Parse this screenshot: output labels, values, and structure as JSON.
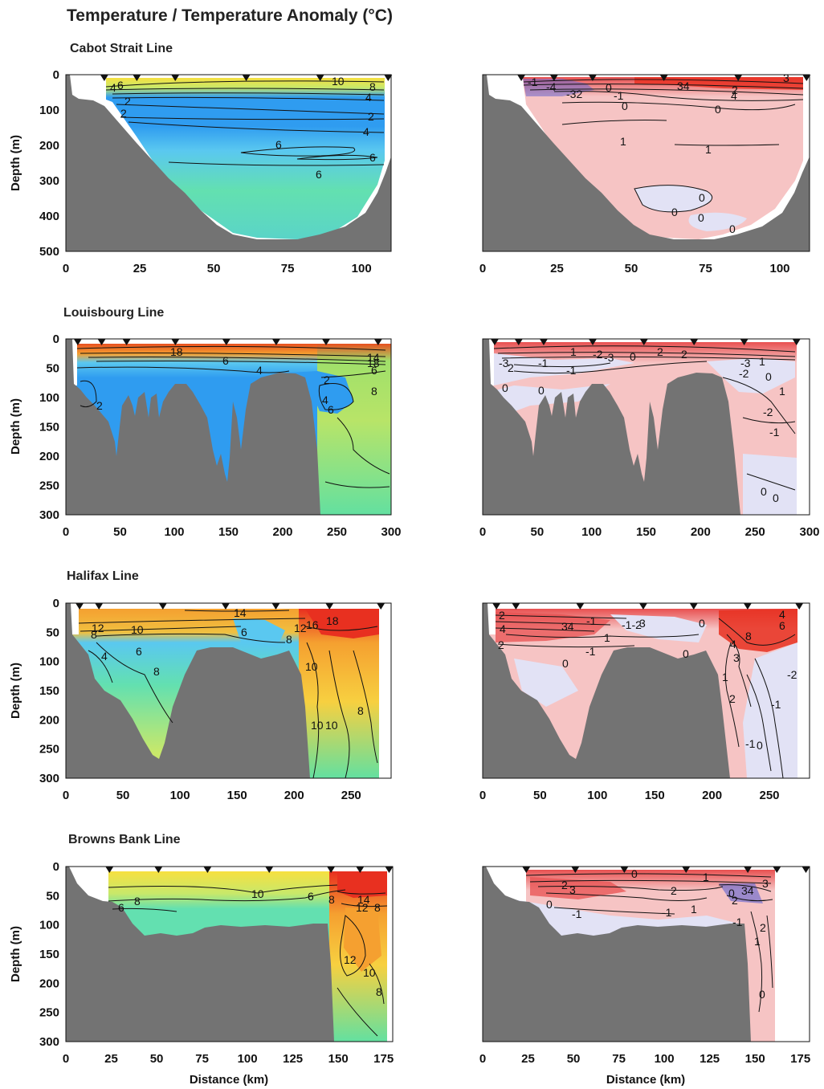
{
  "figure_title": "Temperature / Temperature Anomaly (°C)",
  "colors": {
    "bathymetry": "#737373",
    "cold": "#2f9cf0",
    "cool": "#5ac8f0",
    "mid": "#63e0b0",
    "warm_mid": "#c8e86a",
    "warm": "#f7e040",
    "hot": "#f5a030",
    "hottest": "#e83020",
    "anom_pos": "#f6c4c4",
    "anom_pos_strong": "#e85050",
    "anom_neg": "#e2e2f5",
    "anom_neg_strong": "#6a6ad0"
  },
  "chart_data": [
    {
      "type": "heatmap",
      "section": "Cabot Strait Line",
      "panel": "temperature",
      "ylabel": "Depth (m)",
      "xlim": [
        0,
        110
      ],
      "ylim": [
        500,
        0
      ],
      "xticks": [
        "0",
        "25",
        "50",
        "75",
        "100"
      ],
      "yticks": [
        "0",
        "100",
        "200",
        "300",
        "400",
        "500"
      ],
      "stations_km": [
        13,
        24,
        37,
        61,
        86,
        109
      ],
      "contour_labels": [
        "10",
        "8",
        "4",
        "6",
        "4",
        "2",
        "2",
        "2",
        "4",
        "6",
        "6",
        "6"
      ]
    },
    {
      "type": "heatmap",
      "section": "Cabot Strait Line",
      "panel": "anomaly",
      "xlim": [
        0,
        110
      ],
      "ylim": [
        500,
        0
      ],
      "xticks": [
        "0",
        "25",
        "50",
        "75",
        "100"
      ],
      "stations_km": [
        13,
        24,
        37,
        61,
        86,
        109
      ],
      "contour_labels": [
        "-1",
        "-4",
        "-32",
        "0",
        "-1",
        "0",
        "34",
        "2",
        "3",
        "4",
        "0",
        "1",
        "1",
        "0",
        "0",
        "0",
        "0"
      ]
    },
    {
      "type": "heatmap",
      "section": "Louisbourg Line",
      "panel": "temperature",
      "ylabel": "Depth (m)",
      "xlim": [
        0,
        300
      ],
      "ylim": [
        300,
        0
      ],
      "xticks": [
        "0",
        "50",
        "100",
        "150",
        "200",
        "250",
        "300"
      ],
      "yticks": [
        "0",
        "50",
        "100",
        "150",
        "200",
        "250",
        "300"
      ],
      "stations_km": [
        11,
        33,
        56,
        101,
        148,
        194,
        240,
        288
      ],
      "contour_labels": [
        "18",
        "6",
        "4",
        "2",
        "2",
        "4",
        "6",
        "8",
        "14",
        "18",
        "6"
      ]
    },
    {
      "type": "heatmap",
      "section": "Louisbourg Line",
      "panel": "anomaly",
      "xlim": [
        0,
        300
      ],
      "ylim": [
        300,
        0
      ],
      "xticks": [
        "0",
        "50",
        "100",
        "150",
        "200",
        "250",
        "300"
      ],
      "stations_km": [
        11,
        33,
        56,
        101,
        148,
        194,
        240,
        288
      ],
      "contour_labels": [
        "-3",
        "2",
        "-1",
        "1",
        "-2",
        "-3",
        "0",
        "2",
        "2",
        "-1",
        "0",
        "0",
        "-3",
        "-2",
        "1",
        "0",
        "1",
        "-2",
        "-1",
        "0",
        "0"
      ]
    },
    {
      "type": "heatmap",
      "section": "Halifax Line",
      "panel": "temperature",
      "ylabel": "Depth (m)",
      "xlim": [
        0,
        285
      ],
      "ylim": [
        300,
        0
      ],
      "xticks": [
        "0",
        "50",
        "100",
        "150",
        "200",
        "250"
      ],
      "yticks": [
        "0",
        "50",
        "100",
        "150",
        "200",
        "250",
        "300"
      ],
      "stations_km": [
        12,
        29,
        85,
        140,
        184,
        231,
        276
      ],
      "contour_labels": [
        "12",
        "10",
        "8",
        "6",
        "4",
        "8",
        "14",
        "6",
        "8",
        "12",
        "16",
        "18",
        "10",
        "10",
        "10",
        "8"
      ]
    },
    {
      "type": "heatmap",
      "section": "Halifax Line",
      "panel": "anomaly",
      "xlim": [
        0,
        285
      ],
      "ylim": [
        300,
        0
      ],
      "xticks": [
        "0",
        "50",
        "100",
        "150",
        "200",
        "250"
      ],
      "stations_km": [
        12,
        29,
        85,
        140,
        184,
        231,
        276
      ],
      "contour_labels": [
        "2",
        "4",
        "2",
        "34",
        "-1",
        "1",
        "-1",
        "0",
        "-1-2",
        "3",
        "0",
        "0",
        "4",
        "8",
        "4",
        "6",
        "3",
        "1",
        "2",
        "-1",
        "-2",
        "-1",
        "0"
      ]
    },
    {
      "type": "heatmap",
      "section": "Browns Bank Line",
      "panel": "temperature",
      "xlabel": "Distance (km)",
      "ylabel": "Depth (m)",
      "xlim": [
        0,
        180
      ],
      "ylim": [
        300,
        0
      ],
      "xticks": [
        "0",
        "25",
        "50",
        "75",
        "100",
        "125",
        "150",
        "175"
      ],
      "yticks": [
        "0",
        "50",
        "100",
        "150",
        "200",
        "250",
        "300"
      ],
      "stations_km": [
        24,
        51,
        78,
        112,
        146,
        162,
        178
      ],
      "contour_labels": [
        "8",
        "6",
        "10",
        "6",
        "8",
        "14",
        "12",
        "8",
        "12",
        "10",
        "8"
      ]
    },
    {
      "type": "heatmap",
      "section": "Browns Bank Line",
      "panel": "anomaly",
      "xlabel": "Distance (km)",
      "xlim": [
        0,
        180
      ],
      "ylim": [
        300,
        0
      ],
      "xticks": [
        "0",
        "25",
        "50",
        "75",
        "100",
        "125",
        "150",
        "175"
      ],
      "stations_km": [
        24,
        51,
        78,
        112,
        146,
        162,
        178
      ],
      "contour_labels": [
        "0",
        "1",
        "2",
        "3",
        "2",
        "0",
        "-1",
        "-1",
        "1",
        "0",
        "34",
        "3",
        "2",
        "-1",
        "2",
        "1",
        "0"
      ]
    }
  ]
}
